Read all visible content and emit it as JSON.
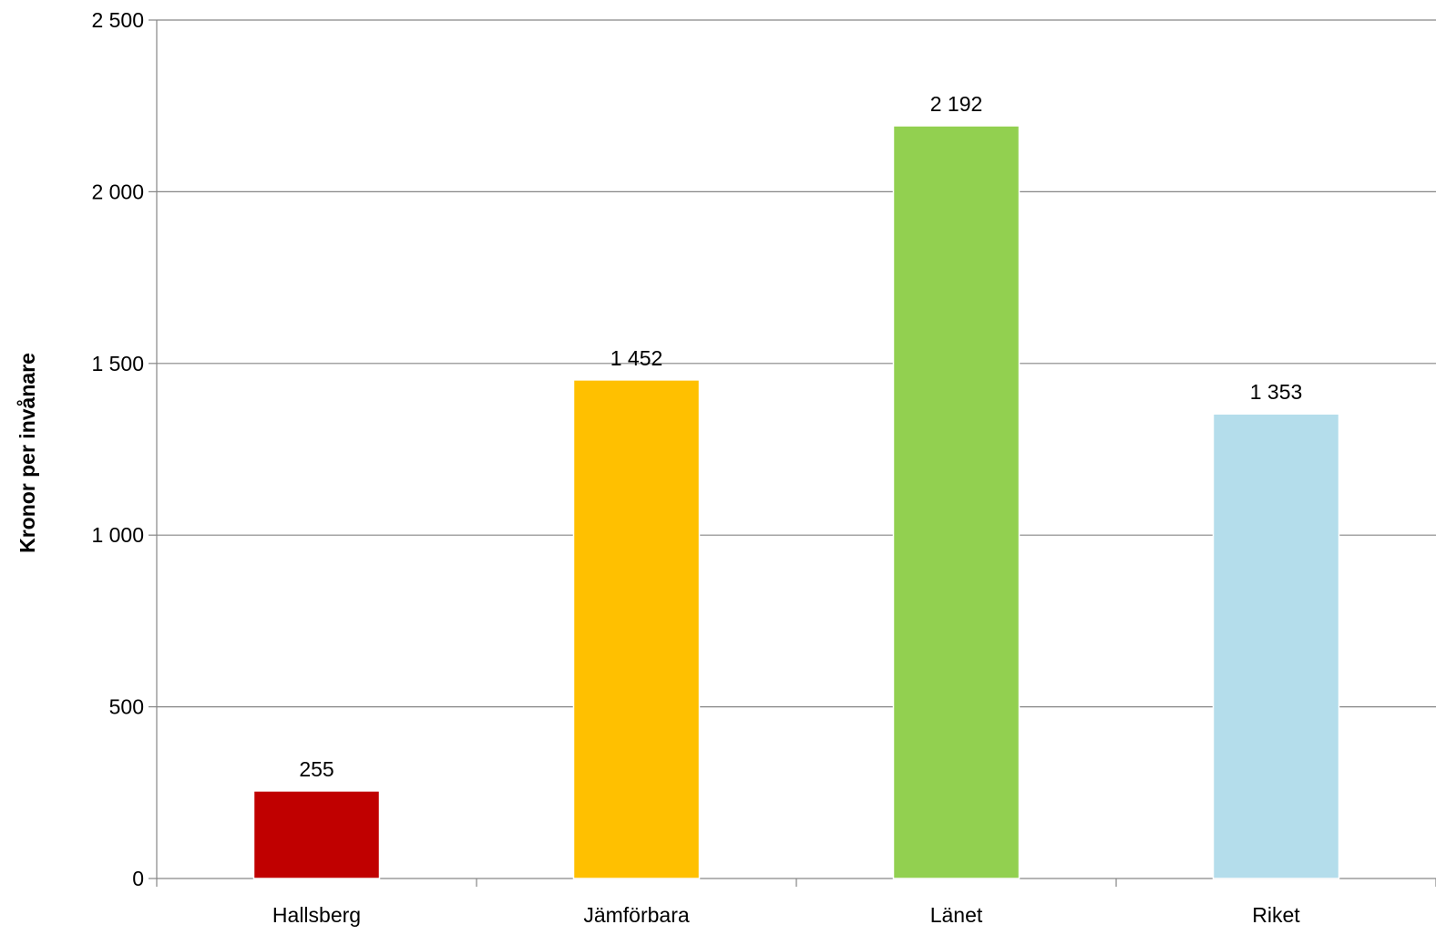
{
  "chart_data": {
    "type": "bar",
    "title": "",
    "xlabel": "",
    "ylabel": "Kronor per invånare",
    "categories": [
      "Hallsberg",
      "Jämförbara",
      "Länet",
      "Riket"
    ],
    "values": [
      255,
      1452,
      2192,
      1353
    ],
    "value_labels": [
      "255",
      "1 452",
      "2 192",
      "1 353"
    ],
    "bar_colors": [
      "#C00000",
      "#FFC000",
      "#92D050",
      "#B4DDEB"
    ],
    "ylim": [
      0,
      2500
    ],
    "yticks": [
      0,
      500,
      1000,
      1500,
      2000,
      2500
    ],
    "ytick_labels": [
      "0",
      "500",
      "1 000",
      "1 500",
      "2 000",
      "2 500"
    ],
    "grid": true,
    "legend": "none"
  }
}
